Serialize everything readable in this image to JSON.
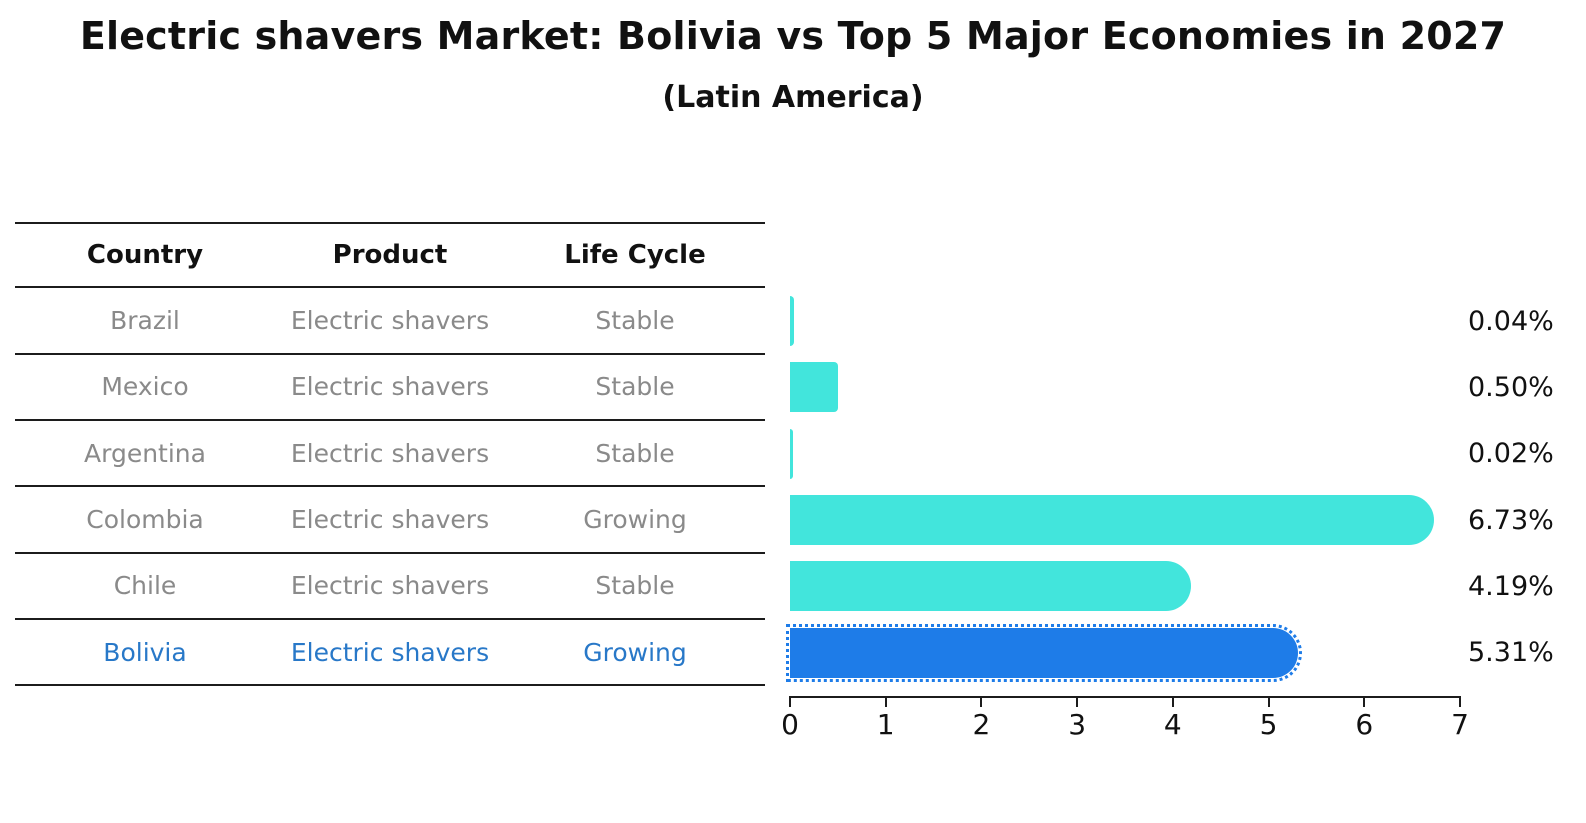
{
  "chart_data": {
    "type": "bar",
    "orientation": "horizontal",
    "title": "Electric shavers Market: Bolivia vs Top 5 Major Economies in 2027",
    "subtitle": "(Latin America)",
    "categories": [
      "Brazil",
      "Mexico",
      "Argentina",
      "Colombia",
      "Chile",
      "Bolivia"
    ],
    "values": [
      0.04,
      0.5,
      0.02,
      6.73,
      4.19,
      5.31
    ],
    "value_labels": [
      "0.04%",
      "0.50%",
      "0.02%",
      "6.73%",
      "4.19%",
      "5.31%"
    ],
    "xlim": [
      0,
      7
    ],
    "x_ticks": [
      "0",
      "1",
      "2",
      "3",
      "4",
      "5",
      "6",
      "7"
    ],
    "grid": "off",
    "bar_color": "#42E5DC",
    "highlight_bar_color": "#1E7CE8",
    "highlight_index": 5
  },
  "table": {
    "headers": [
      "Country",
      "Product",
      "Life Cycle"
    ],
    "rows": [
      {
        "country": "Brazil",
        "product": "Electric shavers",
        "life_cycle": "Stable"
      },
      {
        "country": "Mexico",
        "product": "Electric shavers",
        "life_cycle": "Stable"
      },
      {
        "country": "Argentina",
        "product": "Electric shavers",
        "life_cycle": "Stable"
      },
      {
        "country": "Colombia",
        "product": "Electric shavers",
        "life_cycle": "Growing"
      },
      {
        "country": "Chile",
        "product": "Electric shavers",
        "life_cycle": "Stable"
      },
      {
        "country": "Bolivia",
        "product": "Electric shavers",
        "life_cycle": "Growing"
      }
    ],
    "highlight_text_color": "#2878C8",
    "body_text_color": "#8A8A8A"
  }
}
